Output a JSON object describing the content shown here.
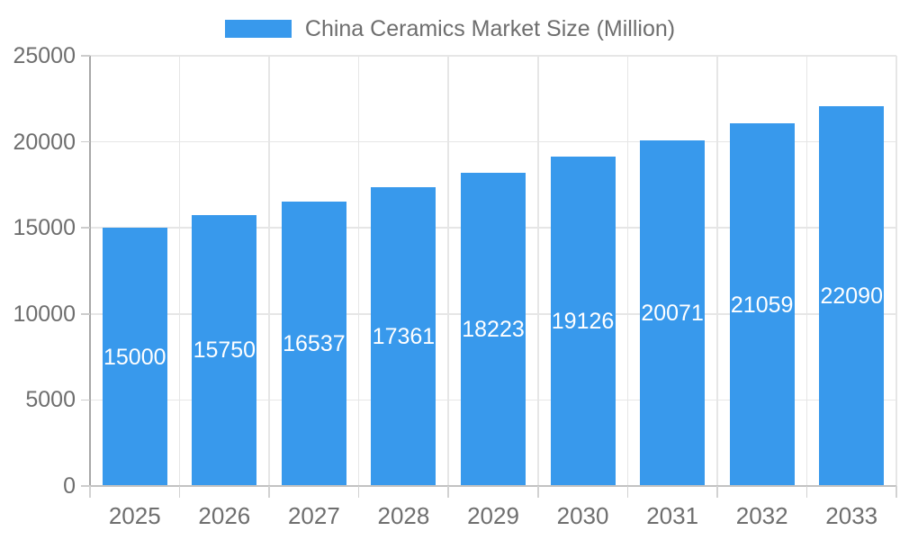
{
  "chart_data": {
    "type": "bar",
    "title": "China Ceramics Market Size (Million)",
    "categories": [
      "2025",
      "2026",
      "2027",
      "2028",
      "2029",
      "2030",
      "2031",
      "2032",
      "2033"
    ],
    "series": [
      {
        "name": "China Ceramics Market Size (Million)",
        "values": [
          15000,
          15750,
          16537,
          17361,
          18223,
          19126,
          20071,
          21059,
          22090
        ]
      }
    ],
    "data_labels": [
      "15000",
      "15750",
      "16537",
      "17361",
      "18223",
      "19126",
      "20071",
      "21059",
      "22090"
    ],
    "xlabel": "",
    "ylabel": "",
    "ylim": [
      0,
      25000
    ],
    "yticks": [
      0,
      5000,
      10000,
      15000,
      20000,
      25000
    ],
    "ytick_labels": [
      "0",
      "5000",
      "10000",
      "15000",
      "20000",
      "25000"
    ],
    "grid": true,
    "legend_position": "top-center",
    "bar_color": "#3899ec",
    "data_label_color": "#ffffff",
    "axis_text_color": "#6e6e6e",
    "gridline_color": "#e6e6e6",
    "background_color": "#ffffff"
  },
  "legend": {
    "swatch_color": "#3899ec"
  }
}
